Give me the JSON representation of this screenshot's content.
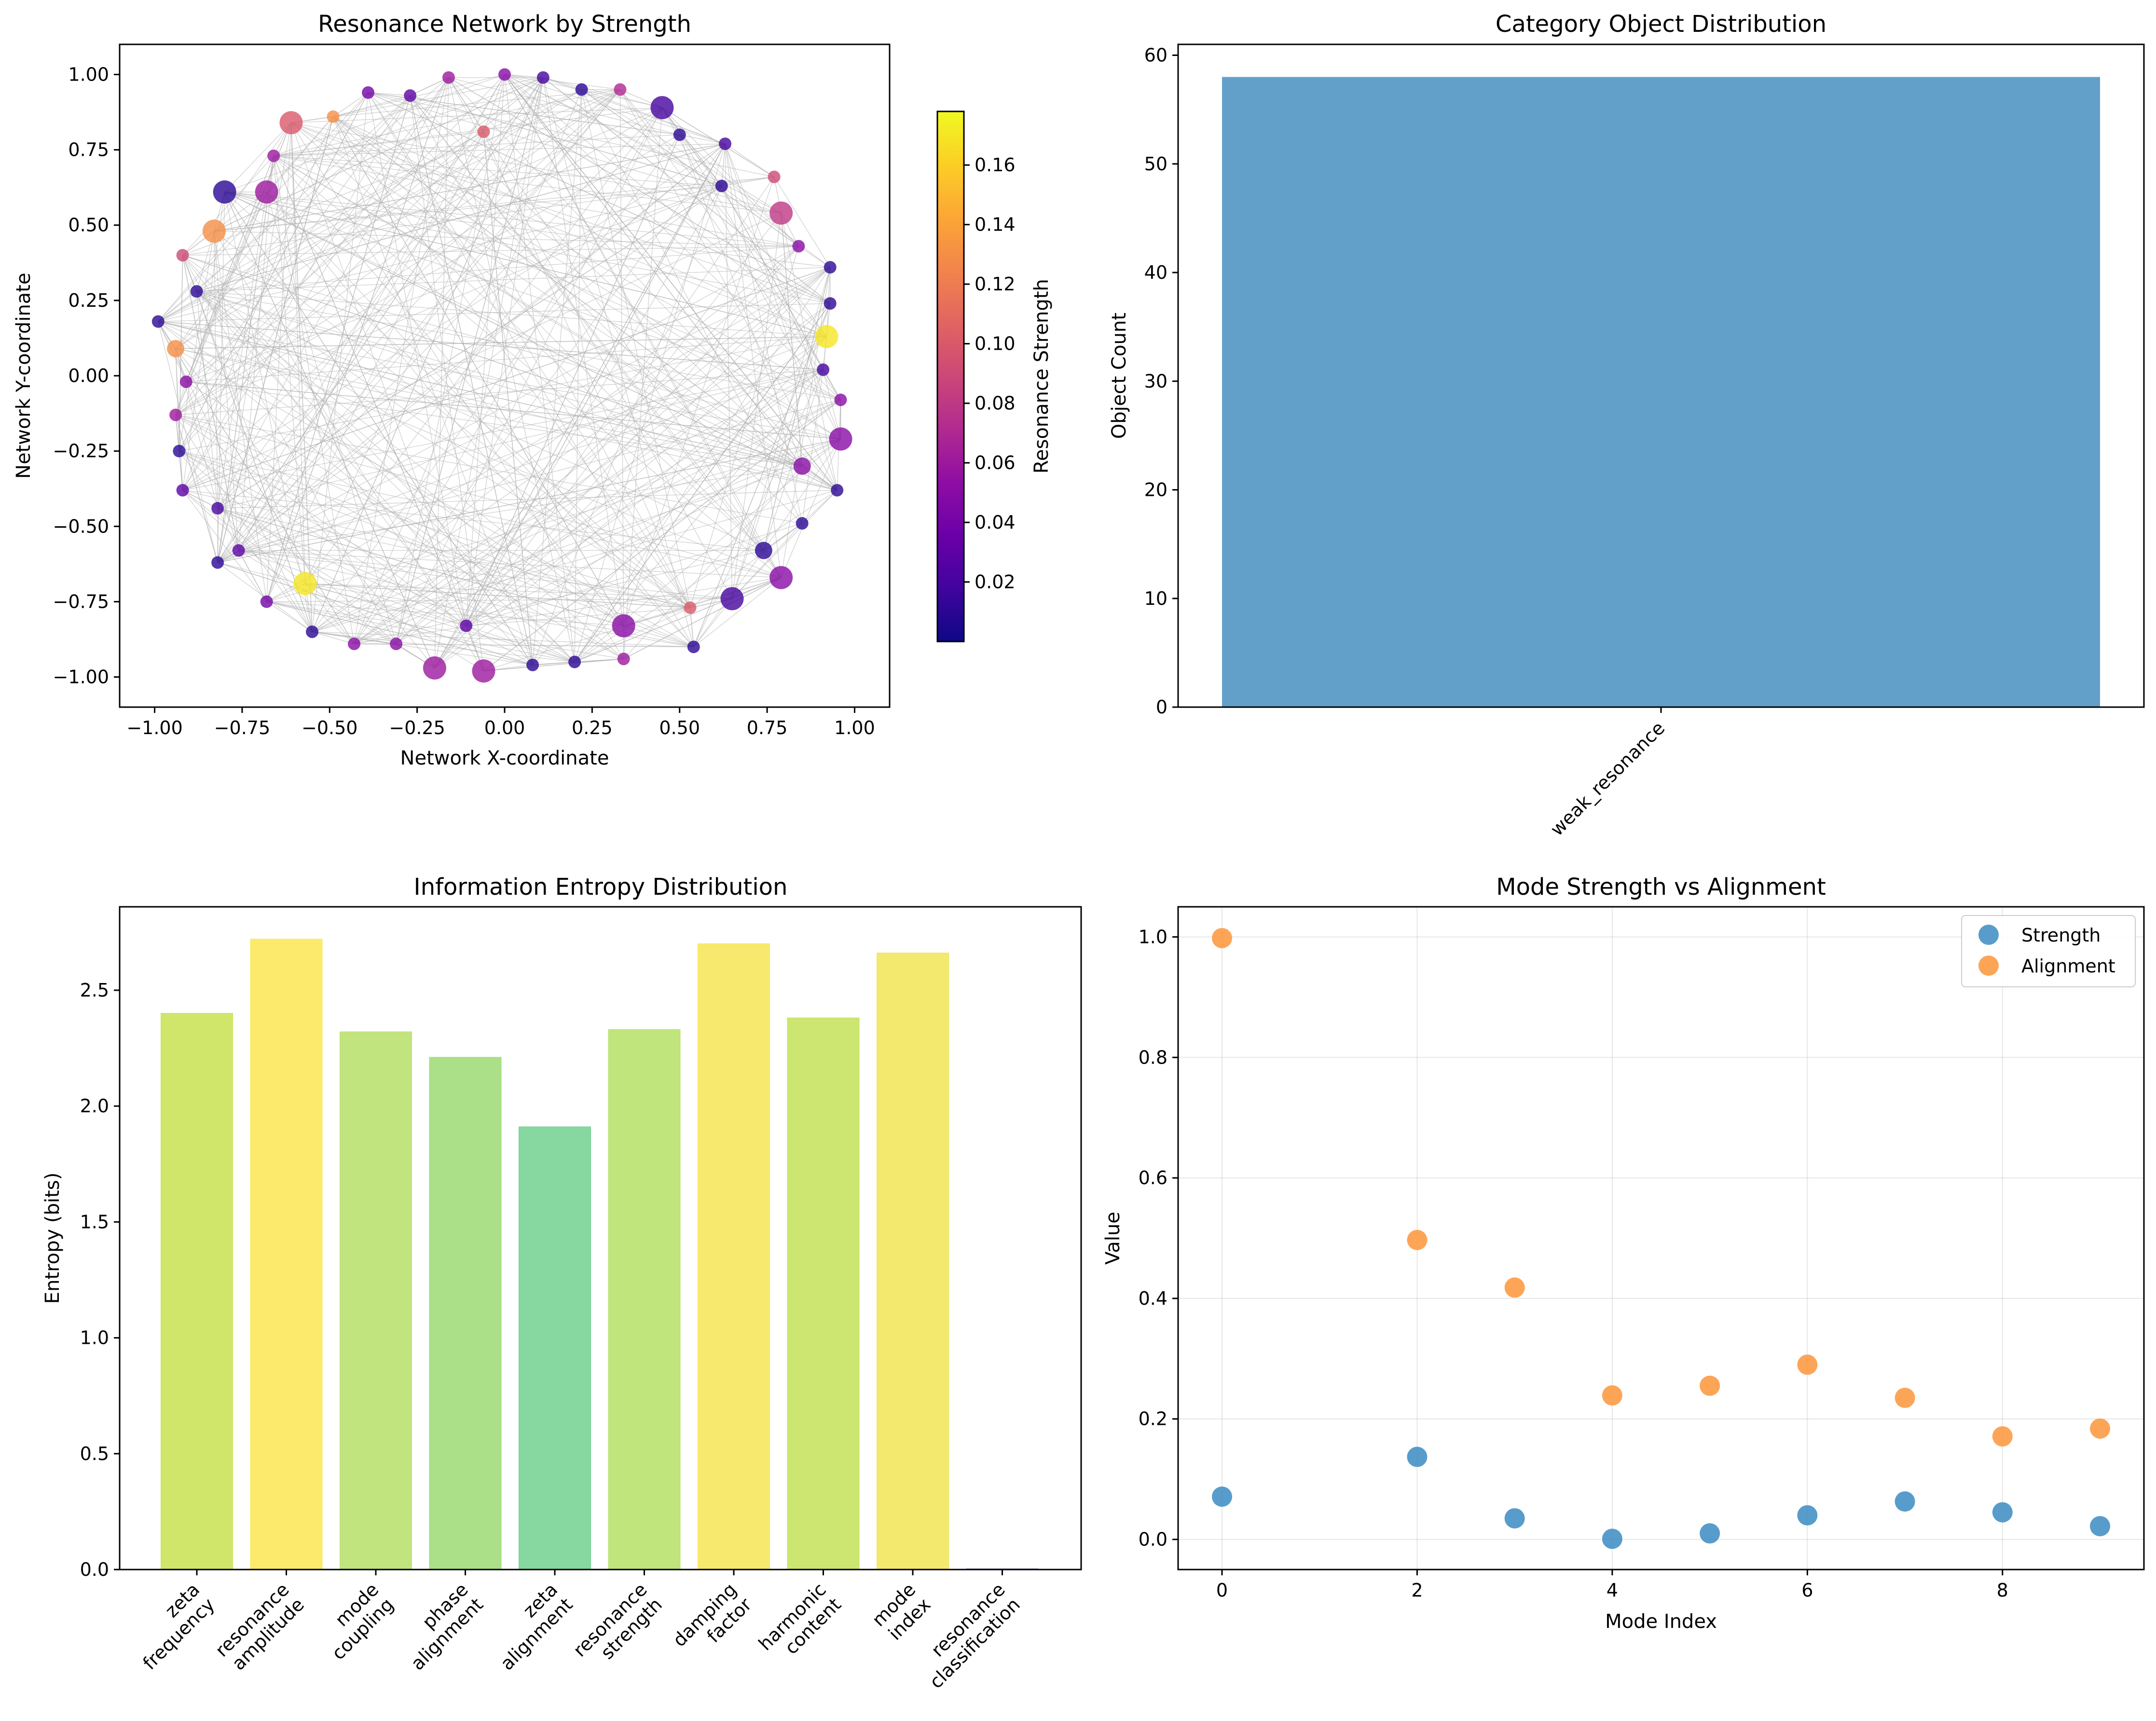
{
  "charts": [
    {
      "type": "scatter",
      "title": "Resonance Network by Strength",
      "xlabel": "Network X-coordinate",
      "ylabel": "Network Y-coordinate",
      "xlim": [
        -1.1,
        1.1
      ],
      "ylim": [
        -1.1,
        1.1
      ],
      "x_ticks": [
        "−1.00",
        "−0.75",
        "−0.50",
        "−0.25",
        "0.00",
        "0.25",
        "0.50",
        "0.75",
        "1.00"
      ],
      "y_ticks": [
        "−1.00",
        "−0.75",
        "−0.50",
        "−0.25",
        "0.00",
        "0.25",
        "0.50",
        "0.75",
        "1.00"
      ],
      "colorbar": {
        "label": "Resonance Strength",
        "range": [
          0.0,
          0.178
        ],
        "ticks": [
          "0.02",
          "0.04",
          "0.06",
          "0.08",
          "0.10",
          "0.12",
          "0.14",
          "0.16"
        ]
      },
      "edge_color": "#b0b0b0",
      "nodes": [
        {
          "x": 0.0,
          "y": 1.0,
          "s": 0.05,
          "size": 1
        },
        {
          "x": 0.11,
          "y": 0.99,
          "s": 0.02,
          "size": 1
        },
        {
          "x": 0.22,
          "y": 0.95,
          "s": 0.01,
          "size": 1
        },
        {
          "x": 0.33,
          "y": 0.95,
          "s": 0.07,
          "size": 1
        },
        {
          "x": 0.45,
          "y": 0.89,
          "s": 0.02,
          "size": 3
        },
        {
          "x": 0.5,
          "y": 0.8,
          "s": 0.01,
          "size": 1
        },
        {
          "x": 0.63,
          "y": 0.77,
          "s": 0.02,
          "size": 1
        },
        {
          "x": 0.62,
          "y": 0.63,
          "s": 0.01,
          "size": 1
        },
        {
          "x": 0.77,
          "y": 0.66,
          "s": 0.09,
          "size": 1
        },
        {
          "x": 0.79,
          "y": 0.54,
          "s": 0.08,
          "size": 3
        },
        {
          "x": 0.84,
          "y": 0.43,
          "s": 0.05,
          "size": 1
        },
        {
          "x": 0.93,
          "y": 0.36,
          "s": 0.01,
          "size": 1
        },
        {
          "x": 0.93,
          "y": 0.24,
          "s": 0.01,
          "size": 1
        },
        {
          "x": 0.92,
          "y": 0.13,
          "s": 0.17,
          "size": 3
        },
        {
          "x": 0.91,
          "y": 0.02,
          "s": 0.02,
          "size": 1
        },
        {
          "x": 0.96,
          "y": -0.08,
          "s": 0.05,
          "size": 1
        },
        {
          "x": 0.96,
          "y": -0.21,
          "s": 0.05,
          "size": 3
        },
        {
          "x": 0.85,
          "y": -0.3,
          "s": 0.05,
          "size": 2
        },
        {
          "x": 0.95,
          "y": -0.38,
          "s": 0.01,
          "size": 1
        },
        {
          "x": 0.85,
          "y": -0.49,
          "s": 0.01,
          "size": 1
        },
        {
          "x": 0.74,
          "y": -0.58,
          "s": 0.01,
          "size": 2
        },
        {
          "x": 0.79,
          "y": -0.67,
          "s": 0.05,
          "size": 3
        },
        {
          "x": 0.65,
          "y": -0.74,
          "s": 0.02,
          "size": 3
        },
        {
          "x": 0.53,
          "y": -0.77,
          "s": 0.1,
          "size": 1
        },
        {
          "x": 0.54,
          "y": -0.9,
          "s": 0.01,
          "size": 1
        },
        {
          "x": 0.34,
          "y": -0.83,
          "s": 0.05,
          "size": 3
        },
        {
          "x": 0.34,
          "y": -0.94,
          "s": 0.06,
          "size": 1
        },
        {
          "x": 0.2,
          "y": -0.95,
          "s": 0.01,
          "size": 1
        },
        {
          "x": 0.08,
          "y": -0.96,
          "s": 0.01,
          "size": 1
        },
        {
          "x": -0.06,
          "y": -0.98,
          "s": 0.06,
          "size": 3
        },
        {
          "x": -0.11,
          "y": -0.83,
          "s": 0.03,
          "size": 1
        },
        {
          "x": -0.2,
          "y": -0.97,
          "s": 0.06,
          "size": 3
        },
        {
          "x": -0.31,
          "y": -0.89,
          "s": 0.05,
          "size": 1
        },
        {
          "x": -0.43,
          "y": -0.89,
          "s": 0.05,
          "size": 1
        },
        {
          "x": -0.55,
          "y": -0.85,
          "s": 0.01,
          "size": 1
        },
        {
          "x": -0.57,
          "y": -0.69,
          "s": 0.17,
          "size": 3
        },
        {
          "x": -0.68,
          "y": -0.75,
          "s": 0.04,
          "size": 1
        },
        {
          "x": -0.76,
          "y": -0.58,
          "s": 0.03,
          "size": 1
        },
        {
          "x": -0.82,
          "y": -0.62,
          "s": 0.01,
          "size": 1
        },
        {
          "x": -0.82,
          "y": -0.44,
          "s": 0.02,
          "size": 1
        },
        {
          "x": -0.92,
          "y": -0.38,
          "s": 0.03,
          "size": 1
        },
        {
          "x": -0.93,
          "y": -0.25,
          "s": 0.01,
          "size": 1
        },
        {
          "x": -0.94,
          "y": -0.13,
          "s": 0.06,
          "size": 1
        },
        {
          "x": -0.91,
          "y": -0.02,
          "s": 0.05,
          "size": 1
        },
        {
          "x": -0.94,
          "y": 0.09,
          "s": 0.13,
          "size": 2
        },
        {
          "x": -0.99,
          "y": 0.18,
          "s": 0.01,
          "size": 1
        },
        {
          "x": -0.88,
          "y": 0.28,
          "s": 0.01,
          "size": 1
        },
        {
          "x": -0.92,
          "y": 0.4,
          "s": 0.09,
          "size": 1
        },
        {
          "x": -0.83,
          "y": 0.48,
          "s": 0.13,
          "size": 3
        },
        {
          "x": -0.8,
          "y": 0.61,
          "s": 0.01,
          "size": 3
        },
        {
          "x": -0.68,
          "y": 0.61,
          "s": 0.06,
          "size": 3
        },
        {
          "x": -0.66,
          "y": 0.73,
          "s": 0.06,
          "size": 1
        },
        {
          "x": -0.61,
          "y": 0.84,
          "s": 0.1,
          "size": 3
        },
        {
          "x": -0.49,
          "y": 0.86,
          "s": 0.13,
          "size": 1
        },
        {
          "x": -0.39,
          "y": 0.94,
          "s": 0.04,
          "size": 1
        },
        {
          "x": -0.27,
          "y": 0.93,
          "s": 0.03,
          "size": 1
        },
        {
          "x": -0.16,
          "y": 0.99,
          "s": 0.06,
          "size": 1
        },
        {
          "x": -0.06,
          "y": 0.81,
          "s": 0.1,
          "size": 1
        }
      ]
    },
    {
      "type": "bar",
      "title": "Category Object Distribution",
      "xlabel": "",
      "ylabel": "Object Count",
      "ylim": [
        0,
        61
      ],
      "y_ticks": [
        "0",
        "10",
        "20",
        "30",
        "40",
        "50",
        "60"
      ],
      "categories": [
        "weak_resonance"
      ],
      "values": [
        58
      ],
      "color": "#62a0ca"
    },
    {
      "type": "bar",
      "title": "Information Entropy Distribution",
      "xlabel": "",
      "ylabel": "Entropy (bits)",
      "ylim": [
        0,
        2.86
      ],
      "y_ticks": [
        "0.0",
        "0.5",
        "1.0",
        "1.5",
        "2.0",
        "2.5"
      ],
      "categories": [
        [
          "zeta",
          "frequency"
        ],
        [
          "resonance",
          "amplitude"
        ],
        [
          "mode",
          "coupling"
        ],
        [
          "phase",
          "alignment"
        ],
        [
          "zeta",
          "alignment"
        ],
        [
          "resonance",
          "strength"
        ],
        [
          "damping",
          "factor"
        ],
        [
          "harmonic",
          "content"
        ],
        [
          "mode",
          "index"
        ],
        [
          "resonance",
          "classification"
        ]
      ],
      "values": [
        2.4,
        2.72,
        2.32,
        2.21,
        1.91,
        2.33,
        2.7,
        2.38,
        2.66,
        0.0
      ],
      "colors": [
        "#cde563",
        "#fbe964",
        "#bee378",
        "#a6de83",
        "#7fd59b",
        "#bde476",
        "#f7e865",
        "#c9e569",
        "#f2e867",
        "#3f4889"
      ]
    },
    {
      "type": "scatter",
      "title": "Mode Strength vs Alignment",
      "xlabel": "Mode Index",
      "ylabel": "Value",
      "xlim": [
        -0.45,
        9.45
      ],
      "ylim": [
        -0.05,
        1.05
      ],
      "x_ticks": [
        "0",
        "2",
        "4",
        "6",
        "8"
      ],
      "y_ticks": [
        "0.0",
        "0.2",
        "0.4",
        "0.6",
        "0.8",
        "1.0"
      ],
      "grid": true,
      "legend_position": "top-right",
      "series": [
        {
          "name": "Strength",
          "color": "#3b8bc2",
          "x": [
            0,
            2,
            3,
            4,
            5,
            6,
            7,
            8,
            9
          ],
          "y": [
            0.071,
            0.137,
            0.035,
            0.001,
            0.01,
            0.04,
            0.063,
            0.045,
            0.022
          ]
        },
        {
          "name": "Alignment",
          "color": "#fd9539",
          "x": [
            0,
            2,
            3,
            4,
            5,
            6,
            7,
            8,
            9
          ],
          "y": [
            0.998,
            0.497,
            0.418,
            0.239,
            0.255,
            0.29,
            0.235,
            0.171,
            0.184
          ]
        }
      ]
    }
  ]
}
